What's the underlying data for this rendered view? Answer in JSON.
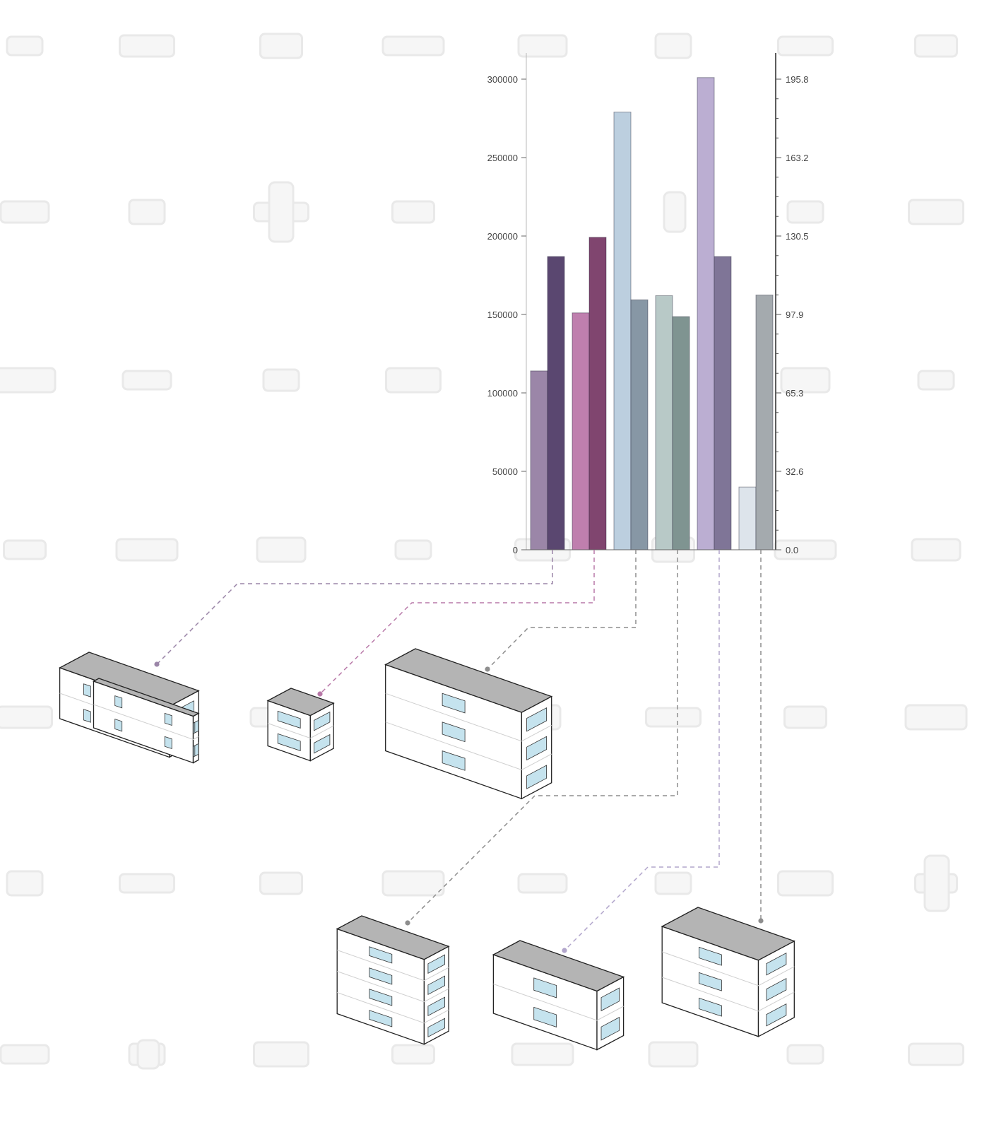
{
  "chart_data": {
    "type": "bar",
    "title": "",
    "xlabel": "",
    "ylabel": "",
    "categories": [
      "",
      "",
      "",
      "",
      "",
      ""
    ],
    "left_axis": {
      "ylim": [
        0,
        320000
      ],
      "ticks": [
        "0",
        "50000",
        "100000",
        "150000",
        "200000",
        "250000",
        "300000"
      ]
    },
    "right_axis": {
      "ylim": [
        0,
        209
      ],
      "ticks": [
        "0.0",
        "32.6",
        "65.3",
        "97.9",
        "130.5",
        "163.2",
        "195.8"
      ]
    },
    "series": [
      {
        "axis": "left",
        "values": [
          114000,
          151000,
          279000,
          162000,
          301000,
          40000
        ]
      },
      {
        "axis": "right",
        "values": [
          122,
          130,
          104,
          97,
          122,
          106
        ]
      }
    ],
    "colors": {
      "left": [
        "#9b86a8",
        "#bf7fae",
        "#bccfdf",
        "#b8c9c7",
        "#bbaed2",
        "#dde4eb"
      ],
      "right": [
        "#5a4770",
        "#80456f",
        "#8797a5",
        "#7f9491",
        "#7f7597",
        "#a4aaae"
      ]
    },
    "connector_colors": [
      "#9b86a8",
      "#b878a8",
      "#8e8e8e",
      "#8e8e8e",
      "#b2a6cc",
      "#8e8e8e"
    ],
    "grid": false,
    "legend": "none"
  },
  "buildings": {
    "roof_color": "#b4b4b4",
    "wall_color": "#ffffff",
    "window_color": "#c5e3ee"
  }
}
